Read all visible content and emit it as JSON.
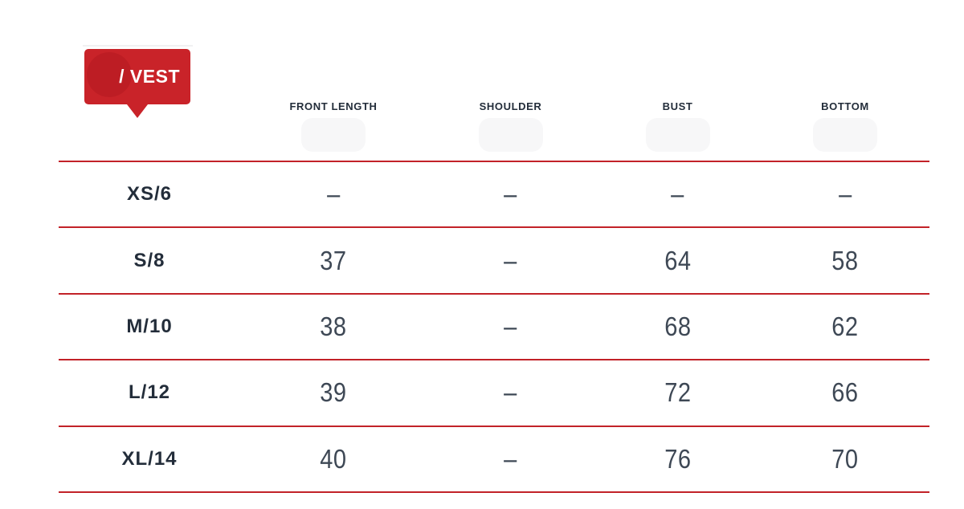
{
  "badge": {
    "label": "/ VEST"
  },
  "table": {
    "columns": [
      "FRONT LENGTH",
      "SHOULDER",
      "BUST",
      "BOTTOM"
    ],
    "rows": [
      {
        "size": "XS/6",
        "values": [
          "–",
          "–",
          "–",
          "–"
        ]
      },
      {
        "size": "S/8",
        "values": [
          "37",
          "–",
          "64",
          "58"
        ]
      },
      {
        "size": "M/10",
        "values": [
          "38",
          "–",
          "68",
          "62"
        ]
      },
      {
        "size": "L/12",
        "values": [
          "39",
          "–",
          "72",
          "66"
        ]
      },
      {
        "size": "XL/14",
        "values": [
          "40",
          "–",
          "76",
          "70"
        ]
      }
    ]
  },
  "colors": {
    "badge_red": "#c92329",
    "badge_circle_red": "#bd1d24",
    "divider_red": "#c22228",
    "text_dark": "#232d3a",
    "text_value": "#3e4855",
    "ghost_gray": "#f7f7f8"
  }
}
